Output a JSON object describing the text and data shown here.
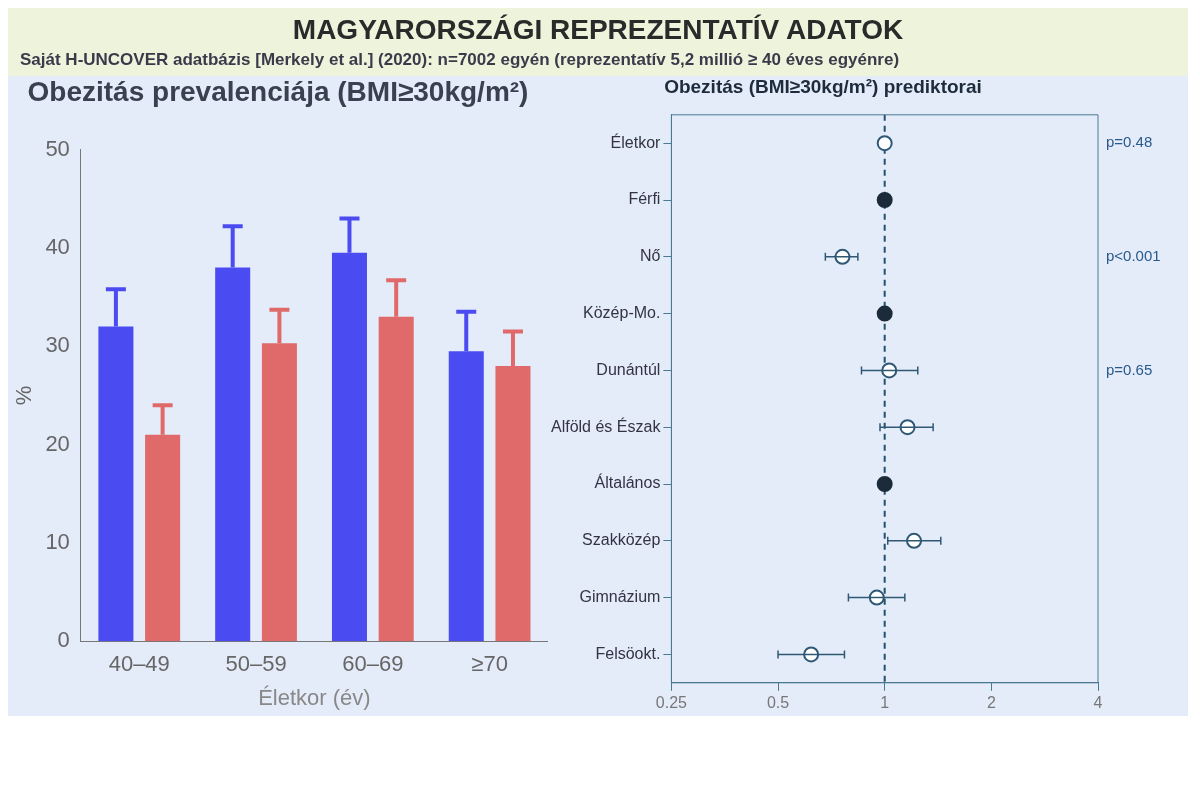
{
  "chart_data": [
    {
      "type": "other",
      "title": "MAGYARORSZÁGI REPREZENTATÍV ADATOK",
      "subtitle": "Saját H-UNCOVER adatbázis [Merkely et al.] (2020): n=7002 egyén (reprezentatív 5,2 millió ≥ 40 éves egyénre)"
    },
    {
      "type": "bar",
      "title": "Obezitás prevalenciája (BMI≥30kg/m²)",
      "categories": [
        "40–49",
        "50–59",
        "60–69",
        "≥70"
      ],
      "xlabel": "Életkor (év)",
      "ylabel": "%",
      "ylim": [
        0,
        50
      ],
      "yticks": [
        0,
        10,
        20,
        30,
        40,
        50
      ],
      "grid": false,
      "series": [
        {
          "color": "#4b4bf2",
          "values": [
            32,
            38,
            39.5,
            29.5
          ],
          "errors": [
            [
              32,
              35.8
            ],
            [
              38,
              42.2
            ],
            [
              39.5,
              43
            ],
            [
              29.5,
              33.5
            ]
          ]
        },
        {
          "color": "#e06a6a",
          "values": [
            21,
            30.3,
            33,
            28
          ],
          "errors": [
            [
              21,
              24
            ],
            [
              30.3,
              33.7
            ],
            [
              33,
              36.7
            ],
            [
              28,
              31.5
            ]
          ]
        }
      ]
    },
    {
      "type": "scatter",
      "orientation": "horizontal",
      "title": "Obezitás (BMI≥30kg/m²) prediktorai",
      "categories": [
        "Életkor",
        "Férfi",
        "Nő",
        "Közép-Mo.",
        "Dunántúl",
        "Alföld és Észak",
        "Általános",
        "Szakközép",
        "Gimnázium",
        "Felsöokt."
      ],
      "log": "x",
      "xlim": [
        0.25,
        4
      ],
      "xticks": [
        0.25,
        0.5,
        1,
        2,
        4
      ],
      "grid": false,
      "marker": "circle",
      "ref_lines": [
        {
          "axis": "x",
          "value": 1,
          "line_style": "dashed",
          "color": "#24506e"
        }
      ],
      "annotations": [
        "p=0.48",
        "p<0.001",
        "p=0.65"
      ],
      "series": [
        {
          "color": "#1c2b3a",
          "values": [
            null,
            1,
            null,
            1,
            null,
            null,
            1,
            null,
            null,
            null
          ]
        },
        {
          "color": "#2f5875",
          "values": [
            1.0,
            null,
            0.76,
            null,
            1.03,
            1.16,
            null,
            1.21,
            0.95,
            0.62
          ],
          "errors": [
            null,
            null,
            [
              0.68,
              0.84
            ],
            null,
            [
              0.86,
              1.24
            ],
            [
              0.97,
              1.37
            ],
            null,
            [
              1.02,
              1.44
            ],
            [
              0.79,
              1.14
            ],
            [
              0.5,
              0.77
            ]
          ]
        }
      ]
    }
  ]
}
